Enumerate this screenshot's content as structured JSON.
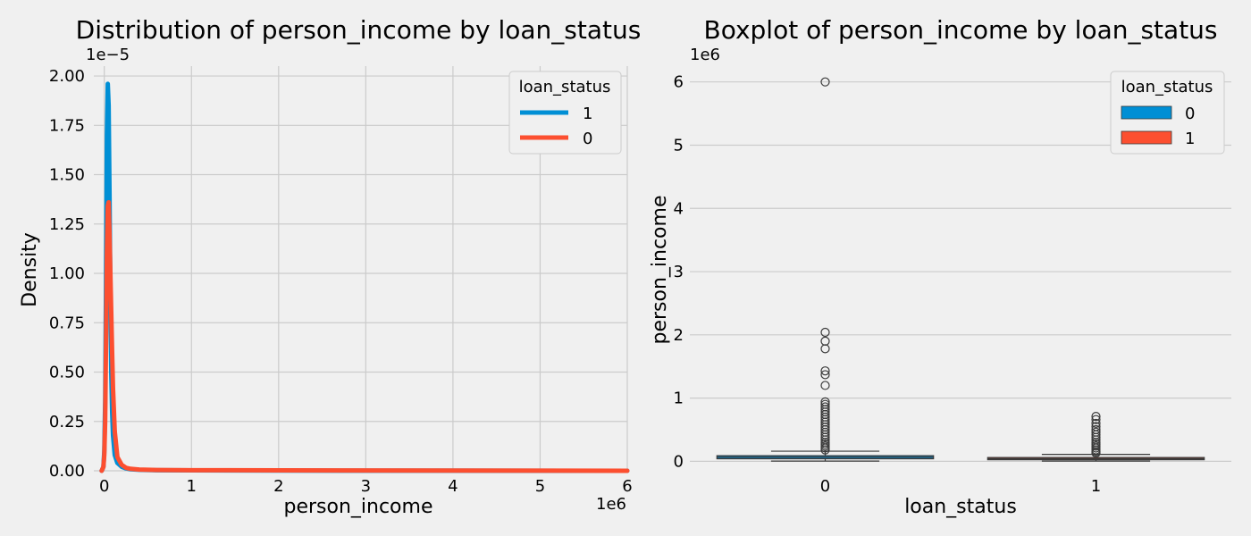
{
  "chart_data": [
    {
      "type": "line",
      "subtype": "kde",
      "title": "Distribution of person_income by loan_status",
      "xlabel": "person_income",
      "ylabel": "Density",
      "x_offset_label": "1e6",
      "y_offset_label": "1e−5",
      "xlim": [
        -0.12,
        6.0
      ],
      "ylim": [
        0,
        2.05
      ],
      "xticks": [
        0,
        1,
        2,
        3,
        4,
        5,
        6
      ],
      "yticks": [
        0.0,
        0.25,
        0.5,
        0.75,
        1.0,
        1.25,
        1.5,
        1.75,
        2.0
      ],
      "ytick_labels": [
        "0.00",
        "0.25",
        "0.50",
        "0.75",
        "1.00",
        "1.25",
        "1.50",
        "1.75",
        "2.00"
      ],
      "grid": true,
      "legend": {
        "title": "loan_status",
        "placement": "top-right",
        "entries": [
          {
            "label": "1",
            "color": "#008fd5"
          },
          {
            "label": "0",
            "color": "#fc4f30"
          }
        ]
      },
      "series": [
        {
          "name": "1",
          "color": "#008fd5",
          "x": [
            -0.03,
            -0.01,
            0.0,
            0.01,
            0.02,
            0.03,
            0.04,
            0.05,
            0.06,
            0.07,
            0.08,
            0.09,
            0.1,
            0.12,
            0.15,
            0.2,
            0.25,
            0.3,
            0.4,
            0.6,
            1.0,
            2.0,
            4.0,
            6.0
          ],
          "y": [
            0.0,
            0.02,
            0.1,
            0.35,
            0.95,
            1.7,
            1.96,
            1.85,
            1.4,
            0.9,
            0.5,
            0.3,
            0.18,
            0.08,
            0.04,
            0.02,
            0.012,
            0.008,
            0.005,
            0.003,
            0.002,
            0.001,
            0.0005,
            0.0
          ]
        },
        {
          "name": "0",
          "color": "#fc4f30",
          "x": [
            -0.03,
            -0.01,
            0.0,
            0.01,
            0.02,
            0.03,
            0.04,
            0.05,
            0.06,
            0.07,
            0.08,
            0.09,
            0.1,
            0.12,
            0.15,
            0.2,
            0.25,
            0.3,
            0.4,
            0.6,
            1.0,
            2.0,
            4.0,
            6.0
          ],
          "y": [
            0.0,
            0.02,
            0.08,
            0.25,
            0.65,
            1.1,
            1.34,
            1.36,
            1.2,
            1.0,
            0.8,
            0.6,
            0.42,
            0.2,
            0.07,
            0.03,
            0.015,
            0.01,
            0.006,
            0.004,
            0.003,
            0.002,
            0.001,
            0.0
          ]
        }
      ]
    },
    {
      "type": "boxplot",
      "title": "Boxplot of person_income by loan_status",
      "xlabel": "loan_status",
      "ylabel": "person_income",
      "y_offset_label": "1e6",
      "ylim": [
        -0.15,
        6.25
      ],
      "yticks": [
        0,
        1,
        2,
        3,
        4,
        5,
        6
      ],
      "categories": [
        "0",
        "1"
      ],
      "grid": true,
      "legend": {
        "title": "loan_status",
        "placement": "top-right",
        "entries": [
          {
            "label": "0",
            "color": "#008fd5"
          },
          {
            "label": "1",
            "color": "#fc4f30"
          }
        ]
      },
      "boxes": [
        {
          "category": "0",
          "color": "#008fd5",
          "whisker_low": 0.004,
          "q1": 0.04,
          "median": 0.065,
          "q3": 0.089,
          "whisker_high": 0.16,
          "outliers": [
            6.0,
            2.04,
            1.9,
            1.78,
            1.43,
            1.37,
            1.2,
            0.94,
            0.9,
            0.86,
            0.82,
            0.78,
            0.74,
            0.7,
            0.66,
            0.62,
            0.58,
            0.54,
            0.5,
            0.46,
            0.42,
            0.38,
            0.34,
            0.3,
            0.27,
            0.24,
            0.21,
            0.18
          ]
        },
        {
          "category": "1",
          "color": "#fc4f30",
          "whisker_low": 0.004,
          "q1": 0.025,
          "median": 0.042,
          "q3": 0.06,
          "whisker_high": 0.11,
          "outliers": [
            0.71,
            0.66,
            0.6,
            0.55,
            0.5,
            0.46,
            0.42,
            0.38,
            0.34,
            0.3,
            0.27,
            0.24,
            0.21,
            0.18,
            0.15,
            0.13
          ]
        }
      ]
    }
  ]
}
